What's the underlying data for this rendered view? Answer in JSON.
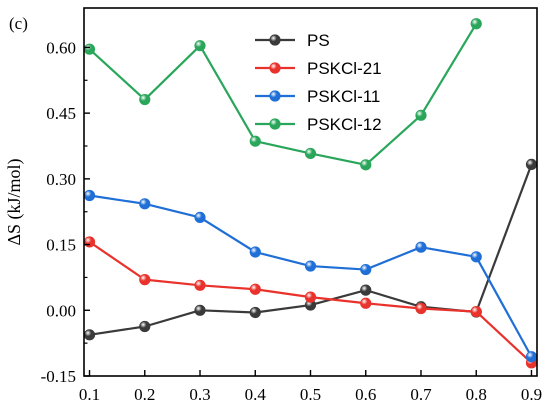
{
  "panel_label": "(c)",
  "chart_data": {
    "type": "line",
    "title": "",
    "xlabel": "",
    "ylabel": "ΔS (kJ/mol)",
    "xlim": [
      0.09,
      0.91
    ],
    "ylim": [
      -0.15,
      0.69
    ],
    "x_ticks": [
      0.1,
      0.2,
      0.3,
      0.4,
      0.5,
      0.6,
      0.7,
      0.8,
      0.9
    ],
    "x_tick_labels": [
      "0.1",
      "0.2",
      "0.3",
      "0.4",
      "0.5",
      "0.6",
      "0.7",
      "0.8",
      "0.9"
    ],
    "y_ticks": [
      -0.15,
      0.0,
      0.15,
      0.3,
      0.45,
      0.6
    ],
    "y_tick_labels": [
      "-0.15",
      "0.00",
      "0.15",
      "0.30",
      "0.45",
      "0.60"
    ],
    "grid": false,
    "legend_position": "top-center",
    "series": [
      {
        "name": "PS",
        "color": "#3a3a3a",
        "x": [
          0.1,
          0.2,
          0.3,
          0.4,
          0.5,
          0.6,
          0.7,
          0.8,
          0.9
        ],
        "y": [
          -0.056,
          -0.037,
          0.0,
          -0.005,
          0.012,
          0.046,
          0.008,
          -0.004,
          0.333
        ]
      },
      {
        "name": "PSKCl-21",
        "color": "#e8322b",
        "x": [
          0.1,
          0.2,
          0.3,
          0.4,
          0.5,
          0.6,
          0.7,
          0.8,
          0.9
        ],
        "y": [
          0.156,
          0.07,
          0.057,
          0.048,
          0.03,
          0.016,
          0.004,
          -0.003,
          -0.12
        ]
      },
      {
        "name": "PSKCl-11",
        "color": "#1f6fd6",
        "x": [
          0.1,
          0.2,
          0.3,
          0.4,
          0.5,
          0.6,
          0.7,
          0.8,
          0.9
        ],
        "y": [
          0.262,
          0.243,
          0.212,
          0.133,
          0.101,
          0.093,
          0.144,
          0.122,
          -0.106
        ]
      },
      {
        "name": "PSKCl-12",
        "color": "#2aa65a",
        "x": [
          0.1,
          0.2,
          0.3,
          0.4,
          0.5,
          0.6,
          0.7,
          0.8
        ],
        "y": [
          0.596,
          0.481,
          0.604,
          0.386,
          0.358,
          0.332,
          0.445,
          0.654
        ]
      }
    ]
  }
}
